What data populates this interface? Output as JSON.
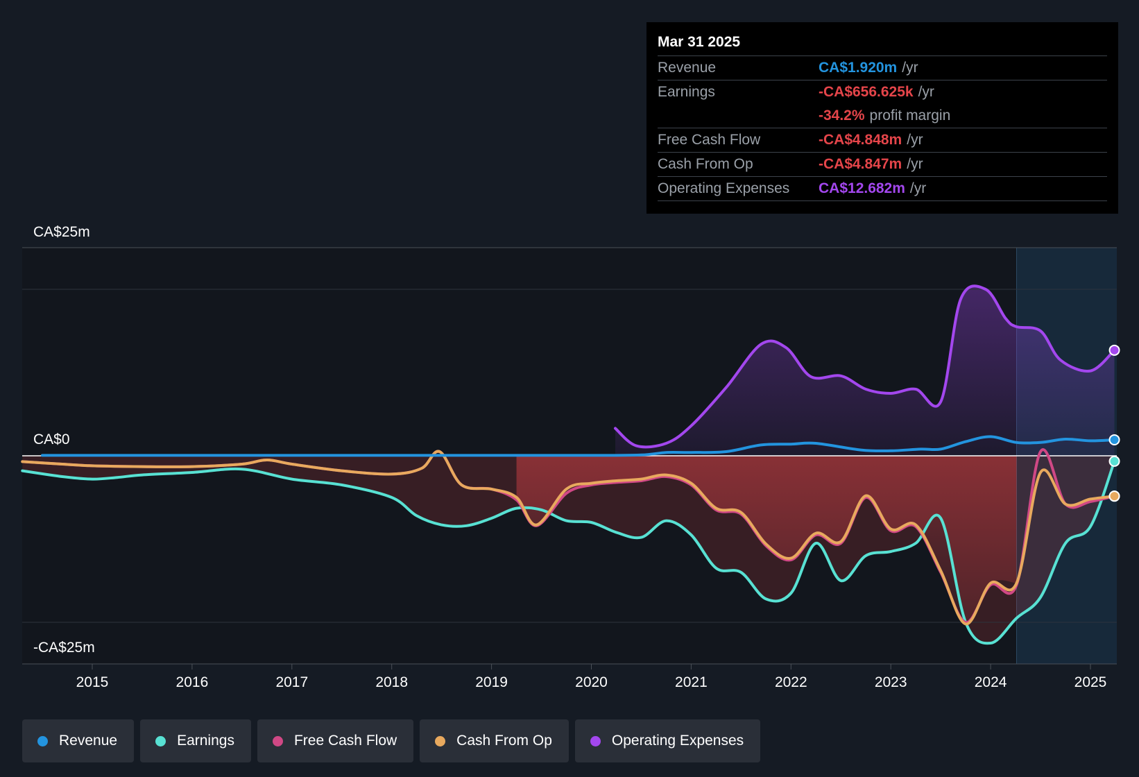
{
  "chart_data": {
    "type": "line",
    "y_labels": {
      "top": "CA$25m",
      "zero": "CA$0",
      "bottom": "-CA$25m"
    },
    "ylim": [
      -25,
      25
    ],
    "x_ticks": [
      "2015",
      "2016",
      "2017",
      "2018",
      "2019",
      "2020",
      "2021",
      "2022",
      "2023",
      "2024",
      "2025"
    ],
    "x_range": [
      2014.3,
      2025.24
    ],
    "forecast_start": 2024.26,
    "series": [
      {
        "name": "Operating Expenses",
        "key": "opex",
        "color": "#a347ee",
        "x": [
          2020.24,
          2020.45,
          2020.75,
          2021.0,
          2021.35,
          2021.7,
          2021.95,
          2022.2,
          2022.5,
          2022.75,
          2023.0,
          2023.25,
          2023.5,
          2023.7,
          2023.95,
          2024.15,
          2024.26,
          2024.5,
          2024.7,
          2025.0,
          2025.24
        ],
        "values": [
          3.3,
          1.2,
          1.5,
          3.6,
          8.2,
          13.4,
          13.0,
          9.5,
          9.6,
          8.0,
          7.5,
          8.0,
          6.5,
          18.8,
          20.0,
          16.5,
          15.5,
          15.0,
          11.5,
          10.2,
          12.682
        ]
      },
      {
        "name": "Revenue",
        "key": "revenue",
        "color": "#2394df",
        "x": [
          2014.5,
          2015.0,
          2016.0,
          2017.0,
          2018.0,
          2019.0,
          2020.0,
          2020.5,
          2020.75,
          2021.0,
          2021.35,
          2021.7,
          2022.0,
          2022.25,
          2022.7,
          2023.0,
          2023.3,
          2023.5,
          2023.75,
          2024.0,
          2024.26,
          2024.5,
          2024.75,
          2025.0,
          2025.24
        ],
        "values": [
          0.05,
          0.05,
          0.05,
          0.05,
          0.05,
          0.05,
          0.05,
          0.1,
          0.4,
          0.4,
          0.5,
          1.3,
          1.4,
          1.5,
          0.7,
          0.6,
          0.8,
          0.8,
          1.7,
          2.3,
          1.6,
          1.6,
          2.0,
          1.8,
          1.92
        ]
      },
      {
        "name": "Earnings",
        "key": "earnings",
        "color": "#58e1d3",
        "x": [
          2014.3,
          2014.7,
          2015.0,
          2015.25,
          2015.5,
          2016.0,
          2016.5,
          2017.0,
          2017.5,
          2018.0,
          2018.25,
          2018.5,
          2018.75,
          2019.0,
          2019.25,
          2019.5,
          2019.75,
          2020.0,
          2020.25,
          2020.5,
          2020.75,
          2021.0,
          2021.25,
          2021.5,
          2021.75,
          2022.0,
          2022.25,
          2022.5,
          2022.75,
          2023.0,
          2023.25,
          2023.5,
          2023.75,
          2024.0,
          2024.26,
          2024.5,
          2024.75,
          2025.0,
          2025.24
        ],
        "values": [
          -1.8,
          -2.5,
          -2.8,
          -2.6,
          -2.3,
          -2.0,
          -1.6,
          -2.8,
          -3.5,
          -5.0,
          -7.2,
          -8.3,
          -8.4,
          -7.5,
          -6.3,
          -6.5,
          -7.8,
          -8.0,
          -9.2,
          -9.8,
          -7.8,
          -9.5,
          -13.5,
          -14.0,
          -17.2,
          -16.5,
          -10.5,
          -15.0,
          -12.0,
          -11.5,
          -10.5,
          -7.5,
          -20.0,
          -22.5,
          -19.5,
          -17.0,
          -10.5,
          -8.5,
          -0.656
        ]
      },
      {
        "name": "Free Cash Flow",
        "key": "fcf",
        "color": "#d04885",
        "x": [
          2014.3,
          2014.7,
          2015.0,
          2015.5,
          2016.0,
          2016.5,
          2016.75,
          2017.0,
          2017.5,
          2018.0,
          2018.3,
          2018.48,
          2018.7,
          2019.0,
          2019.25,
          2019.45,
          2019.75,
          2020.0,
          2020.25,
          2020.5,
          2020.75,
          2021.0,
          2021.25,
          2021.5,
          2021.75,
          2022.0,
          2022.25,
          2022.5,
          2022.75,
          2023.0,
          2023.25,
          2023.5,
          2023.75,
          2024.0,
          2024.26,
          2024.5,
          2024.75,
          2025.0,
          2025.24
        ],
        "values": [
          -0.7,
          -1.0,
          -1.2,
          -1.3,
          -1.3,
          -1.0,
          -0.5,
          -1.0,
          -1.8,
          -2.2,
          -1.5,
          0.5,
          -3.5,
          -4.0,
          -5.3,
          -8.4,
          -4.5,
          -3.5,
          -3.2,
          -3.0,
          -2.5,
          -3.5,
          -6.5,
          -7.0,
          -10.8,
          -12.5,
          -9.5,
          -10.5,
          -5.0,
          -9.0,
          -8.5,
          -14.0,
          -20.0,
          -15.5,
          -15.5,
          0.5,
          -5.8,
          -5.5,
          -4.848
        ]
      },
      {
        "name": "Cash From Op",
        "key": "cfo",
        "color": "#e8a95e",
        "x": [
          2014.3,
          2014.7,
          2015.0,
          2015.5,
          2016.0,
          2016.5,
          2016.75,
          2017.0,
          2017.5,
          2018.0,
          2018.3,
          2018.48,
          2018.7,
          2019.0,
          2019.25,
          2019.45,
          2019.75,
          2020.0,
          2020.25,
          2020.5,
          2020.75,
          2021.0,
          2021.25,
          2021.5,
          2021.75,
          2022.0,
          2022.25,
          2022.5,
          2022.75,
          2023.0,
          2023.25,
          2023.5,
          2023.75,
          2024.0,
          2024.26,
          2024.5,
          2024.75,
          2025.0,
          2025.24
        ],
        "values": [
          -0.7,
          -1.0,
          -1.2,
          -1.3,
          -1.3,
          -1.0,
          -0.5,
          -1.0,
          -1.8,
          -2.2,
          -1.5,
          0.5,
          -3.5,
          -4.0,
          -5.0,
          -8.3,
          -4.0,
          -3.3,
          -3.0,
          -2.8,
          -2.3,
          -3.3,
          -6.3,
          -6.8,
          -10.6,
          -12.3,
          -9.3,
          -10.3,
          -4.8,
          -8.8,
          -8.3,
          -13.8,
          -20.2,
          -15.3,
          -15.3,
          -2.0,
          -5.8,
          -5.2,
          -4.847
        ]
      }
    ]
  },
  "tooltip": {
    "date": "Mar 31 2025",
    "rows": [
      {
        "label": "Revenue",
        "value": "CA$1.920m",
        "suffix": "/yr",
        "color": "#2394df"
      },
      {
        "label": "Earnings",
        "value": "-CA$656.625k",
        "suffix": "/yr",
        "color": "#e5454a"
      },
      {
        "label": "",
        "value": "-34.2%",
        "suffix": "profit margin",
        "color": "#e5454a"
      },
      {
        "label": "Free Cash Flow",
        "value": "-CA$4.848m",
        "suffix": "/yr",
        "color": "#e5454a"
      },
      {
        "label": "Cash From Op",
        "value": "-CA$4.847m",
        "suffix": "/yr",
        "color": "#e5454a"
      },
      {
        "label": "Operating Expenses",
        "value": "CA$12.682m",
        "suffix": "/yr",
        "color": "#a347ee"
      }
    ]
  },
  "legend": [
    {
      "label": "Revenue",
      "color": "#2394df"
    },
    {
      "label": "Earnings",
      "color": "#58e1d3"
    },
    {
      "label": "Free Cash Flow",
      "color": "#d04885"
    },
    {
      "label": "Cash From Op",
      "color": "#e8a95e"
    },
    {
      "label": "Operating Expenses",
      "color": "#a347ee"
    }
  ]
}
